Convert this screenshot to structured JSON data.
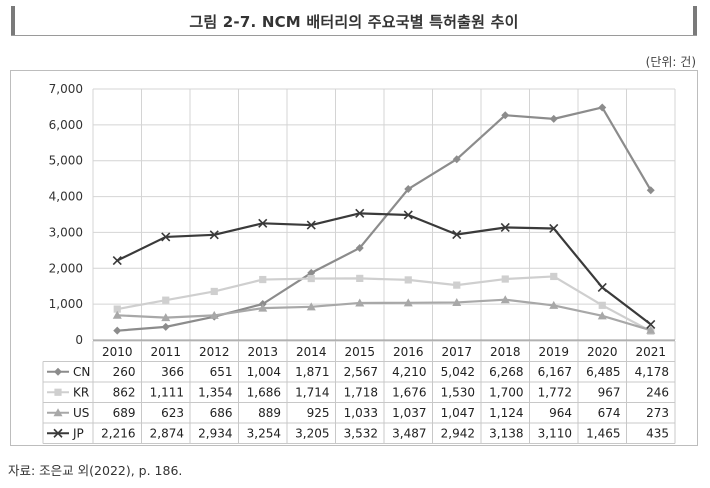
{
  "title": "그림 2-7. NCM 배터리의 주요국별 특허출원 추이",
  "unit_label": "(단위: 건)",
  "source": "자료: 조은교 외(2022), p. 186.",
  "chart_data": {
    "type": "line",
    "title": "NCM 배터리의 주요국별 특허출원 추이",
    "categories": [
      "2010",
      "2011",
      "2012",
      "2013",
      "2014",
      "2015",
      "2016",
      "2017",
      "2018",
      "2019",
      "2020",
      "2021"
    ],
    "ylim": [
      0,
      7000
    ],
    "yticks": [
      0,
      1000,
      2000,
      3000,
      4000,
      5000,
      6000,
      7000
    ],
    "ytick_labels": [
      "0",
      "1,000",
      "2,000",
      "3,000",
      "4,000",
      "5,000",
      "6,000",
      "7,000"
    ],
    "grid": true,
    "legend": "data-table",
    "series": [
      {
        "name": "CN",
        "color": "#8c8c8c",
        "marker": "diamond",
        "values": [
          260,
          366,
          651,
          1004,
          1871,
          2567,
          4210,
          5042,
          6268,
          6167,
          6485,
          4178
        ],
        "labels": [
          "260",
          "366",
          "651",
          "1,004",
          "1,871",
          "2,567",
          "4,210",
          "5,042",
          "6,268",
          "6,167",
          "6,485",
          "4,178"
        ]
      },
      {
        "name": "KR",
        "color": "#cfcfcf",
        "marker": "square",
        "values": [
          862,
          1111,
          1354,
          1686,
          1714,
          1718,
          1676,
          1530,
          1700,
          1772,
          967,
          246
        ],
        "labels": [
          "862",
          "1,111",
          "1,354",
          "1,686",
          "1,714",
          "1,718",
          "1,676",
          "1,530",
          "1,700",
          "1,772",
          "967",
          "246"
        ]
      },
      {
        "name": "US",
        "color": "#a8a8a8",
        "marker": "triangle",
        "values": [
          689,
          623,
          686,
          889,
          925,
          1033,
          1037,
          1047,
          1124,
          964,
          674,
          273
        ],
        "labels": [
          "689",
          "623",
          "686",
          "889",
          "925",
          "1,033",
          "1,037",
          "1,047",
          "1,124",
          "964",
          "674",
          "273"
        ]
      },
      {
        "name": "JP",
        "color": "#3a3a3a",
        "marker": "x",
        "values": [
          2216,
          2874,
          2934,
          3254,
          3205,
          3532,
          3487,
          2942,
          3138,
          3110,
          1465,
          435
        ],
        "labels": [
          "2,216",
          "2,874",
          "2,934",
          "3,254",
          "3,205",
          "3,532",
          "3,487",
          "2,942",
          "3,138",
          "3,110",
          "1,465",
          "435"
        ]
      }
    ]
  }
}
